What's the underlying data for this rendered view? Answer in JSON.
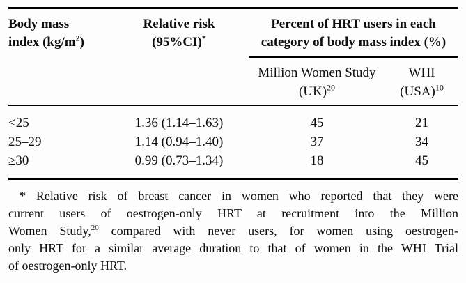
{
  "colors": {
    "background": "#fdfdfd",
    "text": "#0d0d0d",
    "rule": "#000000"
  },
  "table": {
    "header": {
      "bmi": {
        "line1": "Body mass",
        "line2_pre": "index (kg/m",
        "line2_sup": "2",
        "line2_post": ")"
      },
      "rr": {
        "line1": "Relative risk",
        "line2_pre": "(95%CI)",
        "line2_sup": "*"
      },
      "group": {
        "line1": "Percent of HRT users in each",
        "line2": "category of body mass index (%)"
      },
      "mws": {
        "line1": "Million Women Study",
        "line2_pre": "(UK)",
        "line2_sup": "20"
      },
      "whi": {
        "line1": "WHI",
        "line2_pre": "(USA)",
        "line2_sup": "10"
      }
    },
    "rows": [
      {
        "bmi": "<25",
        "rr": "1.36 (1.14–1.63)",
        "mws": "45",
        "whi": "21"
      },
      {
        "bmi": "25–29",
        "rr": "1.14 (0.94–1.40)",
        "mws": "37",
        "whi": "34"
      },
      {
        "bmi": "≥30",
        "rr": "0.99 (0.73–1.34)",
        "mws": "18",
        "whi": "45"
      }
    ]
  },
  "footnote": {
    "lines": [
      {
        "text": "* Relative risk of breast cancer in women who reported that they were"
      },
      {
        "text": "current users of oestrogen-only HRT at recruitment into the Million"
      },
      {
        "pre": "Women Study,",
        "sup": "20",
        "post": " compared with never users, for women using oestrogen-"
      },
      {
        "text": "only HRT for a similar average duration to that of women in the WHI Trial"
      },
      {
        "text": "of oestrogen-only HRT."
      }
    ]
  }
}
